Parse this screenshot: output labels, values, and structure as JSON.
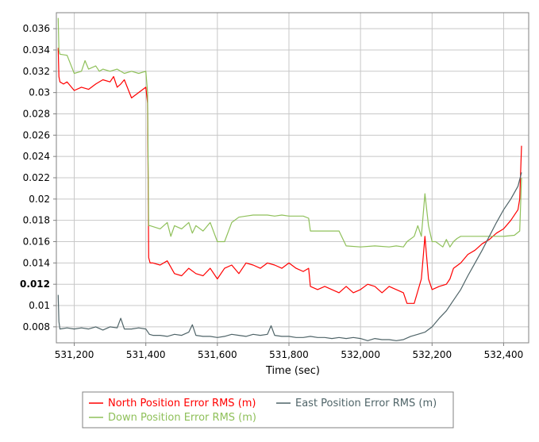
{
  "chart_data": {
    "type": "line",
    "xlabel": "Time (sec)",
    "ylabel": "",
    "xlim": [
      531150,
      532470
    ],
    "ylim": [
      0.0065,
      0.0375
    ],
    "x_ticks": [
      531200,
      531400,
      531600,
      531800,
      532000,
      532200,
      532400
    ],
    "x_tick_labels": [
      "531,200",
      "531,400",
      "531,600",
      "531,800",
      "532,000",
      "532,200",
      "532,400"
    ],
    "y_ticks": [
      0.008,
      0.01,
      0.012,
      0.014,
      0.016,
      0.018,
      0.02,
      0.022,
      0.024,
      0.026,
      0.028,
      0.03,
      0.032,
      0.034,
      0.036
    ],
    "y_tick_labels": [
      "0.008",
      "0.01",
      "0.012",
      "0.014",
      "0.016",
      "0.018",
      "0.02",
      "0.022",
      "0.024",
      "0.026",
      "0.028",
      "0.03",
      "0.032",
      "0.034",
      "0.036"
    ],
    "emphasized_y_tick": "0.012",
    "grid": true,
    "legend_position": "bottom",
    "series": [
      {
        "name": "North Position Error RMS (m)",
        "color": "#ff0000",
        "x": [
          531155,
          531157,
          531160,
          531170,
          531180,
          531200,
          531220,
          531240,
          531260,
          531280,
          531300,
          531310,
          531320,
          531330,
          531340,
          531360,
          531380,
          531400,
          531405,
          531408,
          531412,
          531420,
          531440,
          531460,
          531480,
          531500,
          531520,
          531540,
          531560,
          531580,
          531600,
          531620,
          531640,
          531660,
          531680,
          531700,
          531720,
          531740,
          531760,
          531780,
          531800,
          531820,
          531840,
          531855,
          531860,
          531880,
          531900,
          531920,
          531940,
          531960,
          531980,
          532000,
          532020,
          532040,
          532060,
          532080,
          532100,
          532120,
          532130,
          532150,
          532170,
          532180,
          532190,
          532200,
          532220,
          532240,
          532250,
          532260,
          532280,
          532300,
          532320,
          532340,
          532360,
          532380,
          532400,
          532420,
          532440,
          532445,
          532450
        ],
        "y": [
          0.0342,
          0.0315,
          0.031,
          0.0308,
          0.031,
          0.0302,
          0.0305,
          0.0303,
          0.0308,
          0.0312,
          0.031,
          0.0315,
          0.0305,
          0.0308,
          0.0312,
          0.0295,
          0.03,
          0.0305,
          0.029,
          0.0145,
          0.014,
          0.014,
          0.0138,
          0.0142,
          0.013,
          0.0128,
          0.0135,
          0.013,
          0.0128,
          0.0135,
          0.0125,
          0.0135,
          0.0138,
          0.013,
          0.014,
          0.0138,
          0.0135,
          0.014,
          0.0138,
          0.0135,
          0.014,
          0.0135,
          0.0132,
          0.0135,
          0.0118,
          0.0115,
          0.0118,
          0.0115,
          0.0112,
          0.0118,
          0.0112,
          0.0115,
          0.012,
          0.0118,
          0.0112,
          0.0118,
          0.0115,
          0.0112,
          0.0102,
          0.0102,
          0.0125,
          0.0165,
          0.0125,
          0.0115,
          0.0118,
          0.012,
          0.0125,
          0.0135,
          0.014,
          0.0148,
          0.0152,
          0.0158,
          0.0162,
          0.0168,
          0.0172,
          0.018,
          0.019,
          0.02,
          0.025
        ]
      },
      {
        "name": "Down Position Error RMS (m)",
        "color": "#8fc05a",
        "x": [
          531155,
          531157,
          531160,
          531180,
          531200,
          531220,
          531230,
          531240,
          531260,
          531270,
          531280,
          531300,
          531320,
          531340,
          531360,
          531380,
          531400,
          531405,
          531408,
          531412,
          531440,
          531460,
          531470,
          531480,
          531500,
          531520,
          531530,
          531540,
          531560,
          531580,
          531600,
          531620,
          531640,
          531660,
          531680,
          531700,
          531720,
          531740,
          531760,
          531780,
          531800,
          531820,
          531840,
          531855,
          531860,
          531880,
          531900,
          531920,
          531940,
          531960,
          532000,
          532040,
          532080,
          532100,
          532120,
          532130,
          532150,
          532160,
          532170,
          532180,
          532190,
          532200,
          532210,
          532230,
          532240,
          532250,
          532260,
          532270,
          532280,
          532300,
          532330,
          532360,
          532400,
          532430,
          532445,
          532450
        ],
        "y": [
          0.037,
          0.034,
          0.0336,
          0.0335,
          0.0318,
          0.032,
          0.033,
          0.0322,
          0.0325,
          0.032,
          0.0322,
          0.032,
          0.0322,
          0.0318,
          0.032,
          0.0318,
          0.032,
          0.03,
          0.0175,
          0.0175,
          0.0172,
          0.0178,
          0.0165,
          0.0175,
          0.0172,
          0.0178,
          0.0168,
          0.0175,
          0.017,
          0.0178,
          0.016,
          0.016,
          0.0178,
          0.0183,
          0.0184,
          0.0185,
          0.0185,
          0.0185,
          0.0184,
          0.0185,
          0.0184,
          0.0184,
          0.0184,
          0.0182,
          0.017,
          0.017,
          0.017,
          0.017,
          0.017,
          0.0156,
          0.0155,
          0.0156,
          0.0155,
          0.0156,
          0.0155,
          0.016,
          0.0165,
          0.0175,
          0.0165,
          0.0205,
          0.0175,
          0.016,
          0.016,
          0.0155,
          0.0162,
          0.0155,
          0.016,
          0.0163,
          0.0165,
          0.0165,
          0.0165,
          0.0165,
          0.0165,
          0.0166,
          0.017,
          0.022
        ]
      },
      {
        "name": "East Position Error RMS (m)",
        "color": "#4f6468",
        "x": [
          531155,
          531157,
          531160,
          531180,
          531200,
          531220,
          531240,
          531260,
          531280,
          531300,
          531320,
          531330,
          531340,
          531360,
          531380,
          531400,
          531410,
          531420,
          531440,
          531460,
          531480,
          531500,
          531520,
          531530,
          531540,
          531560,
          531580,
          531600,
          531620,
          531640,
          531660,
          531680,
          531700,
          531720,
          531740,
          531750,
          531760,
          531780,
          531800,
          531820,
          531840,
          531860,
          531880,
          531900,
          531920,
          531940,
          531960,
          531980,
          532000,
          532020,
          532040,
          532060,
          532080,
          532100,
          532120,
          532140,
          532160,
          532180,
          532200,
          532220,
          532240,
          532260,
          532280,
          532300,
          532320,
          532340,
          532360,
          532380,
          532400,
          532420,
          532440,
          532450
        ],
        "y": [
          0.011,
          0.0085,
          0.0078,
          0.0079,
          0.0078,
          0.0079,
          0.0078,
          0.008,
          0.0077,
          0.008,
          0.0079,
          0.0088,
          0.0078,
          0.0078,
          0.0079,
          0.0078,
          0.0073,
          0.0072,
          0.0072,
          0.0071,
          0.0073,
          0.0072,
          0.0075,
          0.0082,
          0.0072,
          0.0071,
          0.0071,
          0.007,
          0.0071,
          0.0073,
          0.0072,
          0.0071,
          0.0073,
          0.0072,
          0.0073,
          0.0081,
          0.0072,
          0.0071,
          0.0071,
          0.007,
          0.007,
          0.0071,
          0.007,
          0.007,
          0.0069,
          0.007,
          0.0069,
          0.007,
          0.0069,
          0.0067,
          0.0069,
          0.0068,
          0.0068,
          0.0067,
          0.0068,
          0.0071,
          0.0073,
          0.0075,
          0.008,
          0.0088,
          0.0095,
          0.0105,
          0.0115,
          0.0128,
          0.014,
          0.0152,
          0.0165,
          0.0178,
          0.019,
          0.02,
          0.0212,
          0.0225
        ]
      }
    ]
  }
}
